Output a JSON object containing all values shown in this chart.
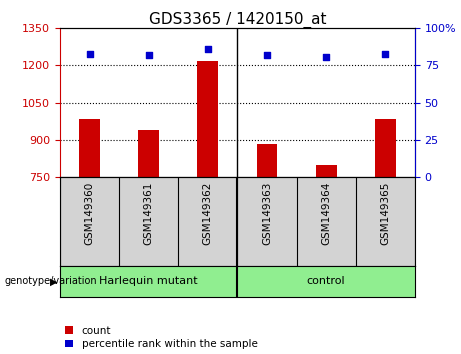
{
  "title": "GDS3365 / 1420150_at",
  "samples": [
    "GSM149360",
    "GSM149361",
    "GSM149362",
    "GSM149363",
    "GSM149364",
    "GSM149365"
  ],
  "counts": [
    985,
    940,
    1220,
    885,
    800,
    985
  ],
  "percentile_ranks": [
    83,
    82,
    86,
    82,
    81,
    83
  ],
  "ylim_left": [
    750,
    1350
  ],
  "ylim_right": [
    0,
    100
  ],
  "yticks_left": [
    750,
    900,
    1050,
    1200,
    1350
  ],
  "yticks_right": [
    0,
    25,
    50,
    75,
    100
  ],
  "ytick_labels_right": [
    "0",
    "25",
    "50",
    "75",
    "100%"
  ],
  "hlines": [
    900,
    1050,
    1200
  ],
  "group_labels": [
    "Harlequin mutant",
    "control"
  ],
  "bar_color": "#CC0000",
  "dot_color": "#0000CC",
  "tick_color_left": "#CC0000",
  "tick_color_right": "#0000CC",
  "background_color": "#ffffff",
  "plot_bg_color": "#ffffff",
  "group_bar_color": "#90EE90",
  "sample_bg_color": "#d3d3d3",
  "bar_width": 0.35,
  "legend_count_label": "count",
  "legend_pct_label": "percentile rank within the sample",
  "genotype_label": "genotype/variation"
}
